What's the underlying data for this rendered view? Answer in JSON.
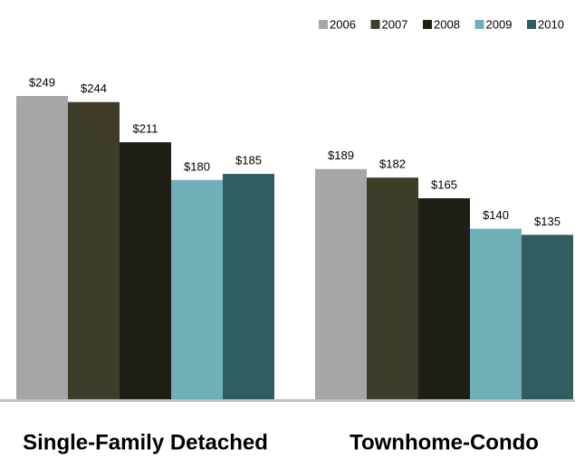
{
  "chart_data": {
    "type": "bar",
    "categories": [
      "Single-Family Detached",
      "Townhome-Condo"
    ],
    "series": [
      {
        "name": "2006",
        "color": "#a6a6a6",
        "values": [
          249,
          189
        ],
        "value_labels": [
          "$249",
          "$189"
        ]
      },
      {
        "name": "2007",
        "color": "#3f3d2a",
        "values": [
          244,
          182
        ],
        "value_labels": [
          "$244",
          "$182"
        ]
      },
      {
        "name": "2008",
        "color": "#201f16",
        "values": [
          211,
          165
        ],
        "value_labels": [
          "$211",
          "$165"
        ]
      },
      {
        "name": "2009",
        "color": "#6fb0b8",
        "values": [
          180,
          140
        ],
        "value_labels": [
          "$180",
          "$140"
        ]
      },
      {
        "name": "2010",
        "color": "#2f5d60",
        "values": [
          185,
          135
        ],
        "value_labels": [
          "$185",
          "$135"
        ]
      }
    ],
    "legend": "top-right"
  }
}
